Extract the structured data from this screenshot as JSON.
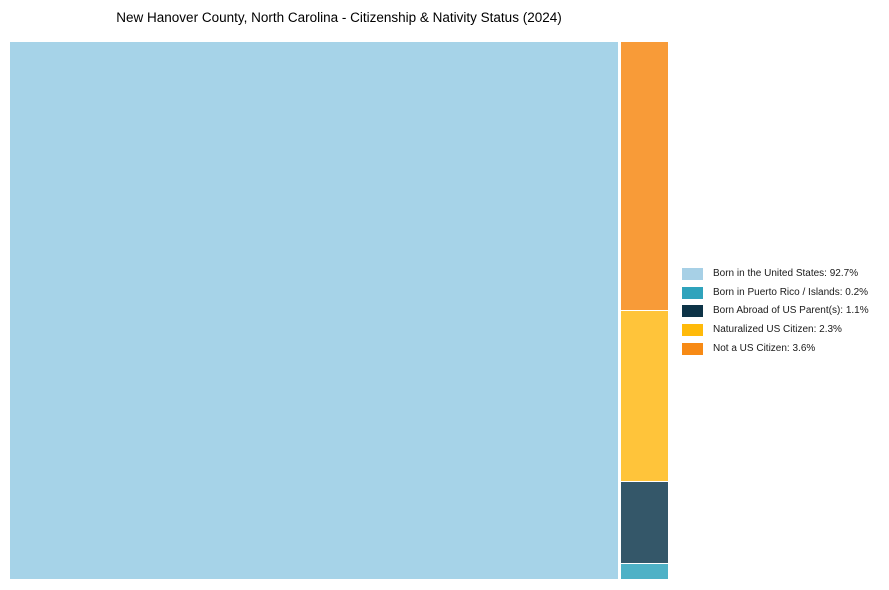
{
  "title": "New Hanover County, North Carolina - Citizenship & Nativity Status (2024)",
  "background_color": "#ffffff",
  "chart_data": {
    "type": "treemap",
    "title": "New Hanover County, North Carolina - Citizenship & Nativity Status (2024)",
    "value_unit": "%",
    "legend_position": "center-right",
    "layout": "largest category fills left block; remaining categories stacked top-to-bottom in descending order in right column",
    "categories": [
      {
        "label": "Born in the United States",
        "value": 92.7,
        "display": "Born in the United States: 92.7%",
        "legend_color": "#A7D0E6",
        "block_color": "#A6D3E8",
        "slug": "born-in-the-united-states"
      },
      {
        "label": "Born in Puerto Rico / Islands",
        "value": 0.2,
        "display": "Born in Puerto Rico / Islands: 0.2%",
        "legend_color": "#2FA3BC",
        "block_color": "#4EB1C6",
        "slug": "born-in-puerto-rico-islands"
      },
      {
        "label": "Born Abroad of US Parent(s)",
        "value": 1.1,
        "display": "Born Abroad of US Parent(s): 1.1%",
        "legend_color": "#0D3347",
        "block_color": "#345769",
        "slug": "born-abroad-of-us-parents"
      },
      {
        "label": "Naturalized US Citizen",
        "value": 2.3,
        "display": "Naturalized US Citizen: 2.3%",
        "legend_color": "#FFBA0A",
        "block_color": "#FFC43A",
        "slug": "naturalized-us-citizen"
      },
      {
        "label": "Not a US Citizen",
        "value": 3.6,
        "display": "Not a US Citizen: 3.6%",
        "legend_color": "#F78A15",
        "block_color": "#F89B38",
        "slug": "not-a-us-citizen"
      }
    ]
  }
}
